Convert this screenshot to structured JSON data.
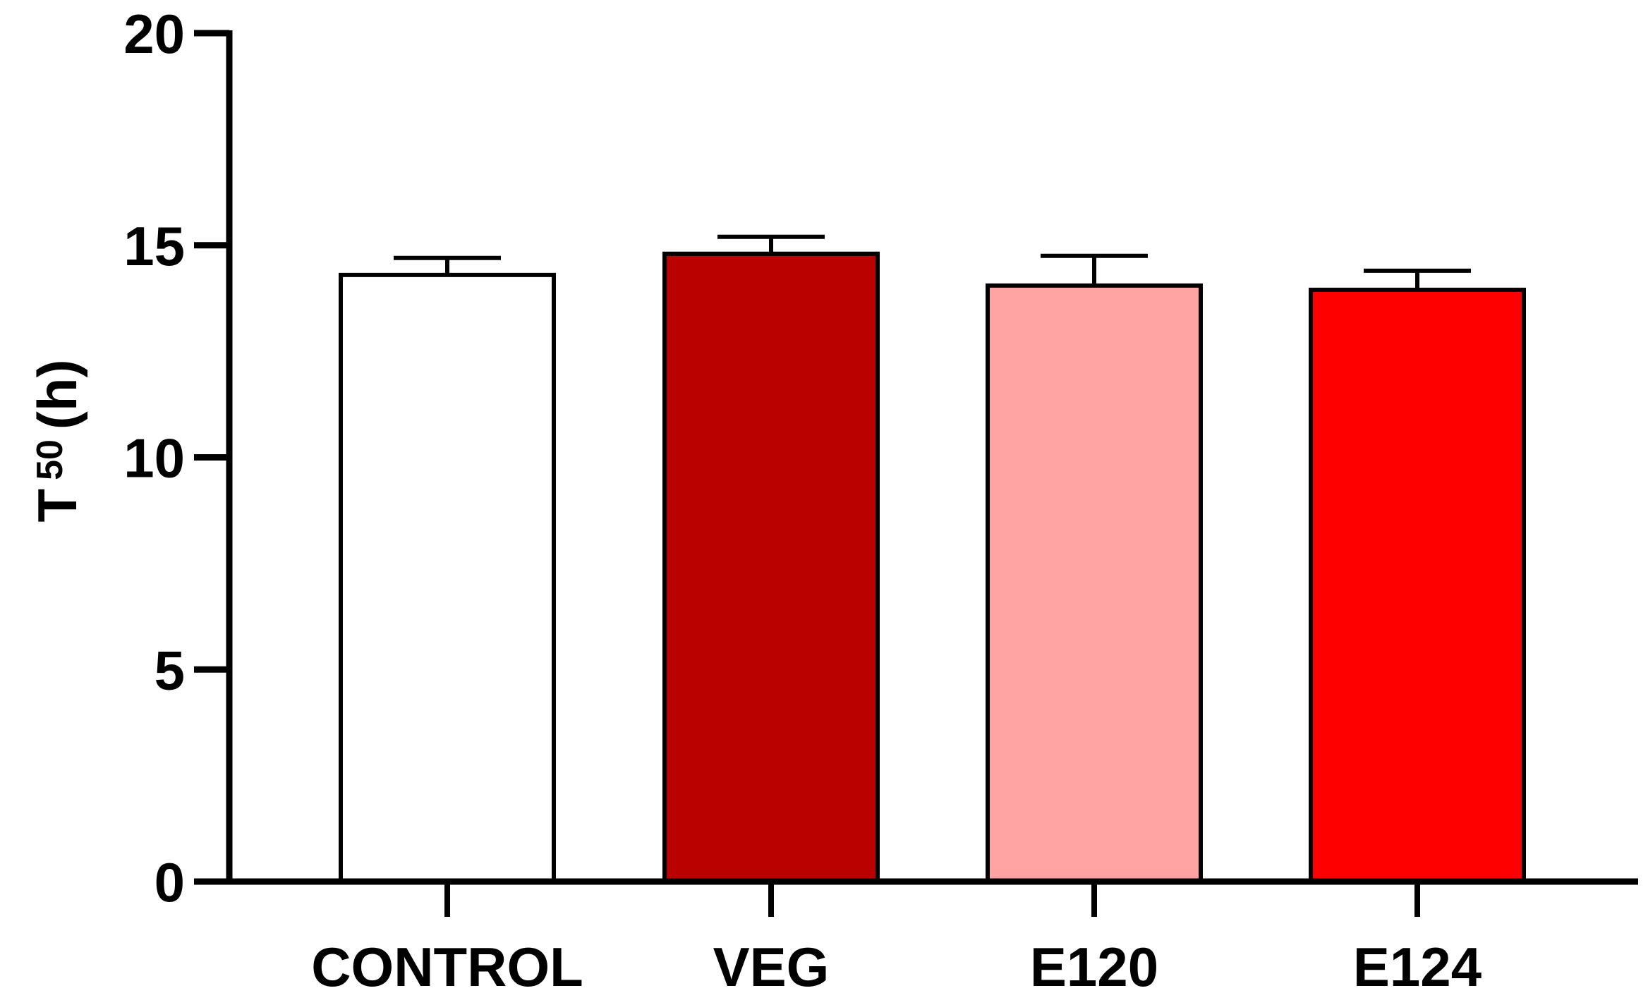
{
  "chart_data": {
    "type": "bar",
    "title": "",
    "xlabel": "",
    "ylabel": {
      "main": "T",
      "subscript": "50",
      "unit": "(h)"
    },
    "categories": [
      "CONTROL",
      "VEG",
      "E120",
      "E124"
    ],
    "values": [
      14.3,
      14.8,
      14.05,
      13.95
    ],
    "errors": [
      0.4,
      0.4,
      0.7,
      0.45
    ],
    "bar_colors": [
      "#ffffff",
      "#bb0000",
      "#ffa3a3",
      "#ff0000"
    ],
    "ylim": [
      0,
      20
    ],
    "yticks": [
      0,
      5,
      10,
      15,
      20
    ],
    "ytick_labels": [
      "0",
      "5",
      "10",
      "15",
      "20"
    ],
    "grid": false,
    "legend": "none"
  }
}
